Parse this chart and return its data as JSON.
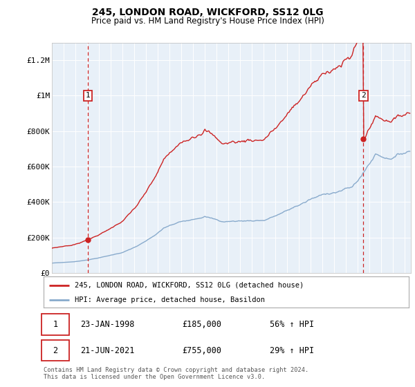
{
  "title": "245, LONDON ROAD, WICKFORD, SS12 0LG",
  "subtitle": "Price paid vs. HM Land Registry's House Price Index (HPI)",
  "legend_line1": "245, LONDON ROAD, WICKFORD, SS12 0LG (detached house)",
  "legend_line2": "HPI: Average price, detached house, Basildon",
  "sale1_date": "23-JAN-1998",
  "sale1_price": 185000,
  "sale1_label": "56% ↑ HPI",
  "sale2_date": "21-JUN-2021",
  "sale2_price": 755000,
  "sale2_label": "29% ↑ HPI",
  "footer": "Contains HM Land Registry data © Crown copyright and database right 2024.\nThis data is licensed under the Open Government Licence v3.0.",
  "red_color": "#cc2222",
  "blue_color": "#88aacc",
  "bg_color": "#e8f0f8",
  "ylim": [
    0,
    1300000
  ],
  "yticks": [
    0,
    200000,
    400000,
    600000,
    800000,
    1000000,
    1200000
  ],
  "ytick_labels": [
    "£0",
    "£200K",
    "£400K",
    "£600K",
    "£800K",
    "£1M",
    "£1.2M"
  ]
}
